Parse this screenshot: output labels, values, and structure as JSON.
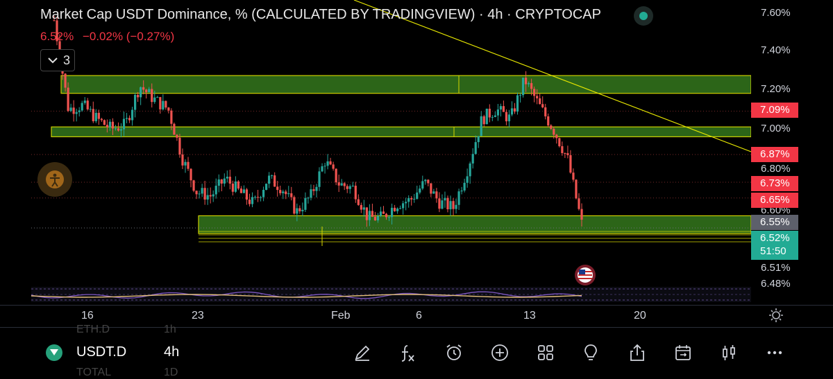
{
  "header": {
    "title": "Market Cap USDT Dominance, % (CALCULATED BY TRADINGVIEW) · 4h · CRYPTOCAP",
    "quote_value": "6.52%",
    "quote_change": "−0.02% (−0.27%)",
    "indicator_count": "3"
  },
  "colors": {
    "up": "#26a69a",
    "down": "#ef5350",
    "zone": "#2f6b1a",
    "zone_border": "#ffff00",
    "trendline": "#ffff00",
    "label_red": "#f23645",
    "label_teal": "#22ab94",
    "label_gray": "#5d606b"
  },
  "price_axis": {
    "ticks": [
      "7.60%",
      "7.40%",
      "7.20%",
      "7.00%",
      "6.80%",
      "6.60%",
      "6.51%",
      "6.48%"
    ],
    "labels": [
      "7.09%",
      "6.87%",
      "6.73%",
      "6.65%",
      "6.55%",
      "6.52%"
    ],
    "countdown": "51:50"
  },
  "time_axis": {
    "ticks": [
      "16",
      "23",
      "Feb",
      "6",
      "13",
      "20"
    ]
  },
  "bottom_bar": {
    "symbol": "USDT.D",
    "timeframe": "4h",
    "ghost_top_symbol": "ETH.D",
    "ghost_top_tf": "1h",
    "ghost_bottom_symbol": "TOTAL",
    "ghost_bottom_tf": "1D",
    "tools": [
      "pencil-icon",
      "formula-icon",
      "alarm-clock-icon",
      "add-icon",
      "grid-icon",
      "lightbulb-icon",
      "share-icon",
      "calendar-replay-icon",
      "candles-icon",
      "more-icon"
    ]
  },
  "chart_data": {
    "type": "candlestick",
    "timeframe": "4h",
    "approx_close_path": [
      7.55,
      7.1,
      7.12,
      7.05,
      7.0,
      7.02,
      7.22,
      7.15,
      7.1,
      6.85,
      6.68,
      6.66,
      6.75,
      6.68,
      6.62,
      6.75,
      6.7,
      6.58,
      6.66,
      6.84,
      6.72,
      6.7,
      6.55,
      6.55,
      6.62,
      6.64,
      6.73,
      6.63,
      6.6,
      6.8,
      7.05,
      7.1,
      7.05,
      7.25,
      7.12,
      7.0,
      6.85,
      6.52
    ],
    "zones": [
      [
        7.18,
        7.27
      ],
      [
        6.96,
        7.01
      ],
      [
        6.47,
        6.56
      ]
    ],
    "last_price": 6.52
  }
}
